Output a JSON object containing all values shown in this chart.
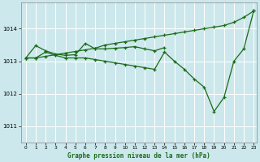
{
  "title": "Graphe pression niveau de la mer (hPa)",
  "bg_color": "#cce8ec",
  "grid_color": "#ffffff",
  "line_color": "#1a6b1a",
  "xlim": [
    -0.5,
    23.3
  ],
  "ylim": [
    1010.5,
    1014.8
  ],
  "yticks": [
    1011,
    1012,
    1013,
    1014
  ],
  "xticks": [
    0,
    1,
    2,
    3,
    4,
    5,
    6,
    7,
    8,
    9,
    10,
    11,
    12,
    13,
    14,
    15,
    16,
    17,
    18,
    19,
    20,
    21,
    22,
    23
  ],
  "series_up": {
    "x": [
      0,
      1,
      2,
      3,
      4,
      5,
      6,
      7,
      8,
      9,
      10,
      11,
      12,
      13,
      14,
      15,
      16,
      17,
      18,
      19,
      20,
      21,
      22,
      23
    ],
    "y": [
      1013.1,
      1013.1,
      1013.15,
      1013.2,
      1013.25,
      1013.3,
      1013.35,
      1013.4,
      1013.5,
      1013.55,
      1013.6,
      1013.65,
      1013.7,
      1013.75,
      1013.8,
      1013.85,
      1013.9,
      1013.95,
      1014.0,
      1014.05,
      1014.1,
      1014.2,
      1014.35,
      1014.55
    ]
  },
  "series_mid": {
    "x": [
      0,
      1,
      2,
      3,
      4,
      5,
      6,
      7,
      8,
      9,
      10,
      11,
      12,
      13,
      14
    ],
    "y": [
      1013.1,
      1013.48,
      1013.32,
      1013.22,
      1013.18,
      1013.2,
      1013.55,
      1013.38,
      1013.38,
      1013.4,
      1013.42,
      1013.45,
      1013.38,
      1013.32,
      1013.42
    ]
  },
  "series_down": {
    "x": [
      0,
      1,
      2,
      3,
      4,
      5,
      6,
      7,
      8,
      9,
      10,
      11,
      12,
      13,
      14,
      15,
      16,
      17,
      18,
      19,
      20,
      21,
      22,
      23
    ],
    "y": [
      1013.1,
      1013.1,
      1013.28,
      1013.18,
      1013.1,
      1013.1,
      1013.1,
      1013.05,
      1013.0,
      1012.95,
      1012.9,
      1012.85,
      1012.8,
      1012.75,
      1013.28,
      1013.0,
      1012.75,
      1012.45,
      1012.2,
      1011.45,
      1011.88,
      1013.0,
      1013.38,
      1014.55
    ]
  }
}
